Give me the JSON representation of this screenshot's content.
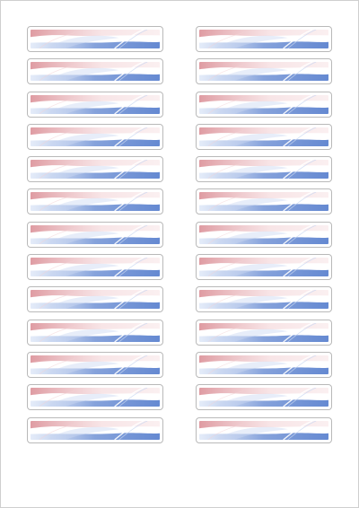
{
  "sheet": {
    "columns": 2,
    "rows": 13,
    "label_count": 26,
    "label_style": "tricolour-swoosh",
    "colors": {
      "red": "#d98a92",
      "red_light": "#f3d3d6",
      "blue": "#5d83cf",
      "blue_light": "#c9d8f2",
      "white": "#ffffff",
      "border": "#b9b9b9"
    }
  },
  "labels": [
    {
      "text": ""
    },
    {
      "text": ""
    },
    {
      "text": ""
    },
    {
      "text": ""
    },
    {
      "text": ""
    },
    {
      "text": ""
    },
    {
      "text": ""
    },
    {
      "text": ""
    },
    {
      "text": ""
    },
    {
      "text": ""
    },
    {
      "text": ""
    },
    {
      "text": ""
    },
    {
      "text": ""
    },
    {
      "text": ""
    },
    {
      "text": ""
    },
    {
      "text": ""
    },
    {
      "text": ""
    },
    {
      "text": ""
    },
    {
      "text": ""
    },
    {
      "text": ""
    },
    {
      "text": ""
    },
    {
      "text": ""
    },
    {
      "text": ""
    },
    {
      "text": ""
    },
    {
      "text": ""
    },
    {
      "text": ""
    }
  ]
}
